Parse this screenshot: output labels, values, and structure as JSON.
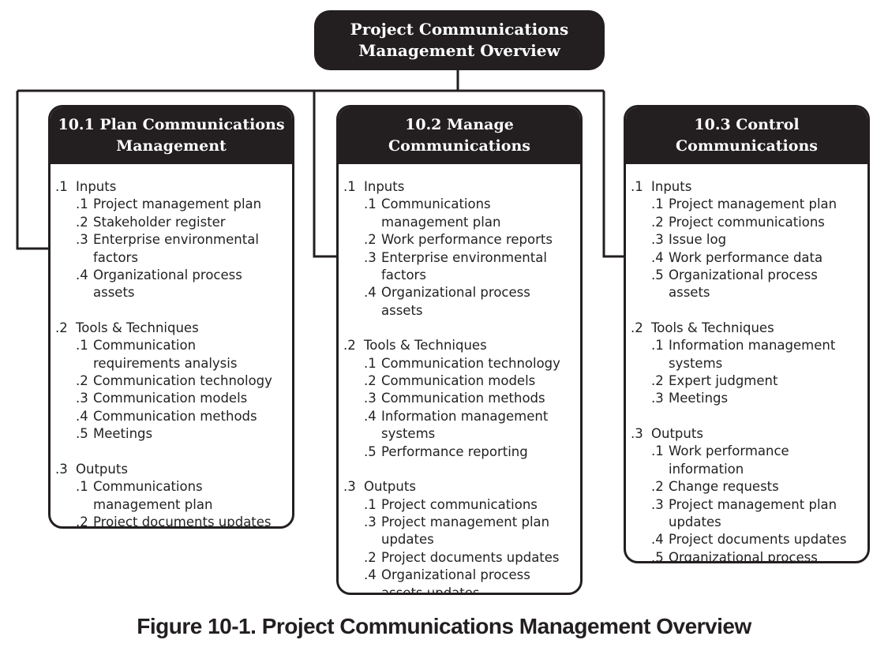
{
  "overview_title": "Project Communications Management Overview",
  "processes": [
    {
      "title": "10.1 Plan Communications Management",
      "sections": [
        {
          "num": ".1",
          "label": "Inputs",
          "items": [
            {
              "num": ".1",
              "text": "Project management plan"
            },
            {
              "num": ".2",
              "text": "Stakeholder register"
            },
            {
              "num": ".3",
              "text": "Enterprise environmental factors"
            },
            {
              "num": ".4",
              "text": "Organizational process assets"
            }
          ]
        },
        {
          "num": ".2",
          "label": "Tools & Techniques",
          "items": [
            {
              "num": ".1",
              "text": "Communication requirements analysis"
            },
            {
              "num": ".2",
              "text": "Communication technology"
            },
            {
              "num": ".3",
              "text": "Communication models"
            },
            {
              "num": ".4",
              "text": "Communication methods"
            },
            {
              "num": ".5",
              "text": "Meetings"
            }
          ]
        },
        {
          "num": ".3",
          "label": "Outputs",
          "items": [
            {
              "num": ".1",
              "text": "Communications management plan"
            },
            {
              "num": ".2",
              "text": "Project documents updates"
            }
          ]
        }
      ]
    },
    {
      "title": "10.2 Manage Communications",
      "sections": [
        {
          "num": ".1",
          "label": "Inputs",
          "items": [
            {
              "num": ".1",
              "text": "Communications management plan"
            },
            {
              "num": ".2",
              "text": "Work performance reports"
            },
            {
              "num": ".3",
              "text": "Enterprise environmental factors"
            },
            {
              "num": ".4",
              "text": "Organizational process assets"
            }
          ]
        },
        {
          "num": ".2",
          "label": "Tools & Techniques",
          "items": [
            {
              "num": ".1",
              "text": "Communication technology"
            },
            {
              "num": ".2",
              "text": "Communication models"
            },
            {
              "num": ".3",
              "text": "Communication methods"
            },
            {
              "num": ".4",
              "text": "Information management systems"
            },
            {
              "num": ".5",
              "text": "Performance reporting"
            }
          ]
        },
        {
          "num": ".3",
          "label": "Outputs",
          "items": [
            {
              "num": ".1",
              "text": "Project communications"
            },
            {
              "num": ".3",
              "text": "Project management plan updates"
            },
            {
              "num": ".2",
              "text": "Project documents updates"
            },
            {
              "num": ".4",
              "text": "Organizational process assets updates"
            }
          ]
        }
      ]
    },
    {
      "title": "10.3 Control Communications",
      "sections": [
        {
          "num": ".1",
          "label": "Inputs",
          "items": [
            {
              "num": ".1",
              "text": "Project management plan"
            },
            {
              "num": ".2",
              "text": "Project communications"
            },
            {
              "num": ".3",
              "text": "Issue log"
            },
            {
              "num": ".4",
              "text": "Work performance data"
            },
            {
              "num": ".5",
              "text": "Organizational process assets"
            }
          ]
        },
        {
          "num": ".2",
          "label": "Tools & Techniques",
          "items": [
            {
              "num": ".1",
              "text": "Information management systems"
            },
            {
              "num": ".2",
              "text": "Expert judgment"
            },
            {
              "num": ".3",
              "text": "Meetings"
            }
          ]
        },
        {
          "num": ".3",
          "label": "Outputs",
          "items": [
            {
              "num": ".1",
              "text": "Work performance information"
            },
            {
              "num": ".2",
              "text": "Change requests"
            },
            {
              "num": ".3",
              "text": "Project management plan updates"
            },
            {
              "num": ".4",
              "text": "Project documents updates"
            },
            {
              "num": ".5",
              "text": "Organizational process assets updates"
            }
          ]
        }
      ]
    }
  ],
  "caption": "Figure 10-1. Project Communications Management Overview"
}
